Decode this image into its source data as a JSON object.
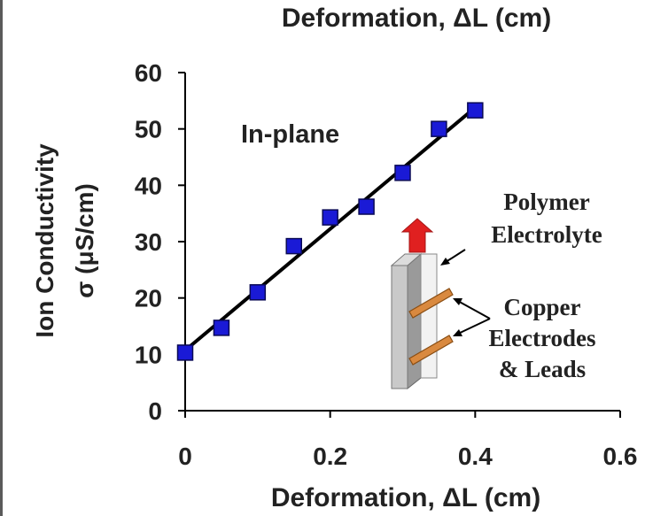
{
  "chart_data": {
    "type": "scatter",
    "title": "Deformation, ΔL (cm)",
    "xlabel": "Deformation, ΔL (cm)",
    "ylabel_line1": "Ion Conductivity",
    "ylabel_line2": "σ (μS/cm)",
    "xlim": [
      0,
      0.6
    ],
    "ylim": [
      0,
      60
    ],
    "x_ticks": [
      "0",
      "0.2",
      "0.4",
      "0.6"
    ],
    "y_ticks": [
      "0",
      "10",
      "20",
      "30",
      "40",
      "50",
      "60"
    ],
    "series": [
      {
        "marker": "square",
        "color": "#1a1ad6",
        "x": [
          0,
          0.05,
          0.1,
          0.15,
          0.2,
          0.25,
          0.3,
          0.35,
          0.4
        ],
        "y": [
          10.3,
          14.7,
          21.0,
          29.2,
          34.3,
          36.2,
          42.2,
          50.0,
          53.3
        ]
      }
    ],
    "fit_line": {
      "x": [
        0,
        0.4
      ],
      "y": [
        10.7,
        53.8
      ],
      "color": "#000000"
    },
    "grid": false,
    "annotation": "In-plane",
    "inset": {
      "label_top_1": "Polymer",
      "label_top_2": "Electrolyte",
      "label_bottom_1": "Copper",
      "label_bottom_2": "Electrodes",
      "label_bottom_3": "& Leads",
      "arrow_color": "#e02020",
      "electrode_color": "#d9893f"
    }
  }
}
